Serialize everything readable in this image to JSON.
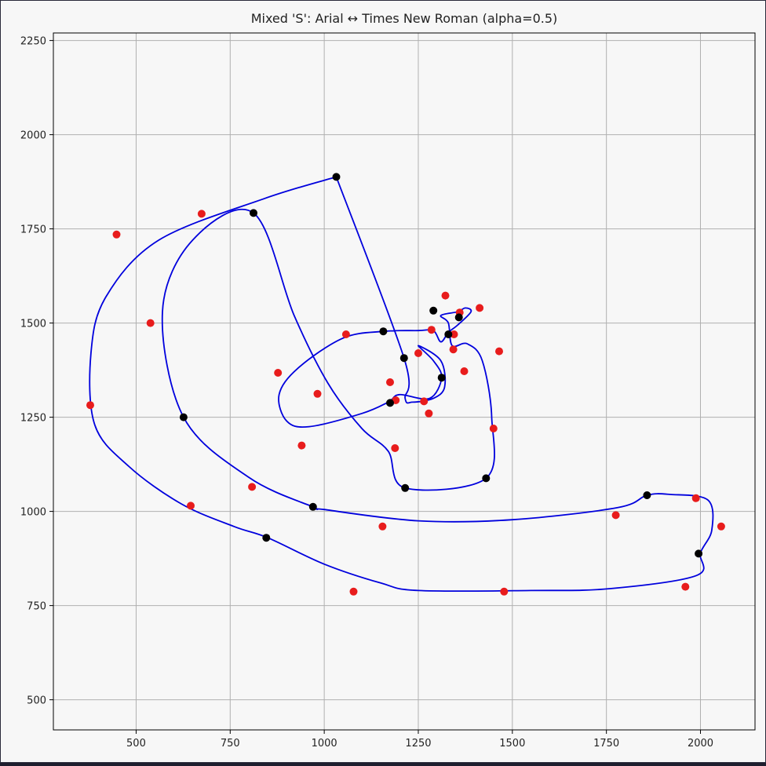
{
  "chart_data": {
    "type": "scatter",
    "title": "Mixed 'S': Arial ↔ Times New Roman (alpha=0.5)",
    "xlabel": "",
    "ylabel": "",
    "xlim": [
      280,
      2145
    ],
    "ylim": [
      420,
      2270
    ],
    "xticks": [
      500,
      750,
      1000,
      1250,
      1500,
      1750,
      2000
    ],
    "yticks": [
      500,
      750,
      1000,
      1250,
      1500,
      1750,
      2000,
      2250
    ],
    "grid": true,
    "legend": "none",
    "colors": {
      "curve": "#0000dd",
      "red_points": "#e81c1c",
      "black_points": "#000000",
      "grid": "#b0b0b0"
    },
    "series": [
      {
        "color": "#0000dd",
        "kind": "curve",
        "points": [
          [
            1032,
            1888
          ],
          [
            840,
            1830
          ],
          [
            560,
            1720
          ],
          [
            420,
            1570
          ],
          [
            380,
            1420
          ],
          [
            390,
            1230
          ],
          [
            480,
            1120
          ],
          [
            620,
            1020
          ],
          [
            760,
            960
          ],
          [
            850,
            930
          ],
          [
            1000,
            860
          ],
          [
            1150,
            810
          ],
          [
            1250,
            790
          ],
          [
            1550,
            790
          ],
          [
            1760,
            795
          ],
          [
            1990,
            830
          ],
          [
            2000,
            890
          ],
          [
            2030,
            950
          ],
          [
            2020,
            1030
          ],
          [
            1920,
            1045
          ],
          [
            1858,
            1043
          ],
          [
            1780,
            1010
          ],
          [
            1500,
            978
          ],
          [
            1250,
            975
          ],
          [
            1000,
            1005
          ],
          [
            970,
            1012
          ],
          [
            800,
            1090
          ],
          [
            626,
            1250
          ],
          [
            570,
            1530
          ],
          [
            650,
            1720
          ],
          [
            812,
            1792
          ],
          [
            920,
            1520
          ],
          [
            1010,
            1340
          ],
          [
            1100,
            1220
          ],
          [
            1170,
            1160
          ],
          [
            1215,
            1062
          ],
          [
            1430,
            1088
          ],
          [
            1445,
            1250
          ],
          [
            1420,
            1400
          ],
          [
            1380,
            1445
          ],
          [
            1340,
            1440
          ],
          [
            1330,
            1500
          ],
          [
            1310,
            1520
          ],
          [
            1355,
            1530
          ],
          [
            1375,
            1540
          ],
          [
            1390,
            1530
          ],
          [
            1355,
            1495
          ],
          [
            1330,
            1475
          ],
          [
            1310,
            1450
          ],
          [
            1290,
            1480
          ],
          [
            1250,
            1480
          ],
          [
            1157,
            1478
          ],
          [
            1050,
            1460
          ],
          [
            930,
            1380
          ],
          [
            880,
            1310
          ],
          [
            900,
            1240
          ],
          [
            960,
            1225
          ],
          [
            1100,
            1260
          ],
          [
            1170,
            1290
          ],
          [
            1200,
            1310
          ],
          [
            1280,
            1300
          ],
          [
            1312,
            1355
          ],
          [
            1290,
            1400
          ],
          [
            1250,
            1440
          ],
          [
            1310,
            1400
          ],
          [
            1320,
            1330
          ],
          [
            1290,
            1300
          ],
          [
            1235,
            1290
          ],
          [
            1215,
            1300
          ],
          [
            1212,
            1407
          ],
          [
            1032,
            1888
          ]
        ]
      },
      {
        "color": "#000000",
        "kind": "points",
        "x": [
          1032,
          812,
          626,
          970,
          846,
          1858,
          1995,
          1215,
          1430,
          1157,
          1212,
          1175,
          1312,
          1290,
          1330,
          1358
        ],
        "y": [
          1888,
          1792,
          1250,
          1012,
          930,
          1043,
          888,
          1062,
          1088,
          1478,
          1407,
          1288,
          1355,
          1533,
          1470,
          1515
        ]
      },
      {
        "color": "#e81c1c",
        "kind": "points",
        "x": [
          448,
          674,
          538,
          378,
          645,
          808,
          940,
          877,
          982,
          1058,
          1175,
          1190,
          1188,
          1250,
          1265,
          1278,
          1285,
          1322,
          1345,
          1360,
          1372,
          1413,
          1450,
          1465,
          1478,
          1155,
          1078,
          1775,
          1960,
          1988,
          2055,
          1343
        ],
        "y": [
          1735,
          1790,
          1500,
          1282,
          1015,
          1065,
          1175,
          1368,
          1312,
          1470,
          1343,
          1295,
          1168,
          1420,
          1292,
          1260,
          1482,
          1573,
          1470,
          1528,
          1372,
          1540,
          1220,
          1425,
          787,
          960,
          787,
          990,
          800,
          1035,
          960,
          1430
        ]
      }
    ]
  }
}
